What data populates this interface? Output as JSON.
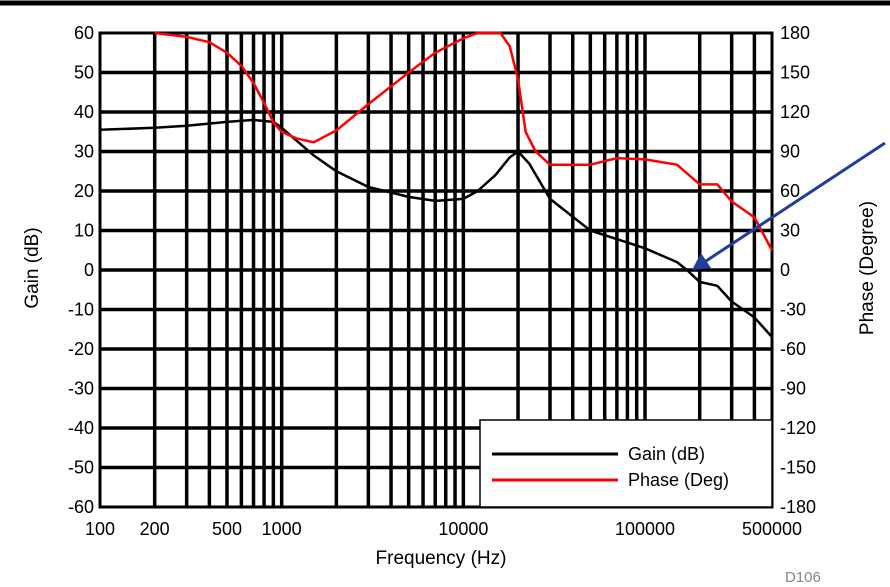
{
  "chart_data": {
    "type": "line",
    "xlabel": "Frequency (Hz)",
    "ylabel": "Gain (dB)",
    "y2label": "Phase (Degree)",
    "xscale": "log",
    "xlim": [
      100,
      500000
    ],
    "ylim": [
      -60,
      60
    ],
    "y2lim": [
      -180,
      180
    ],
    "x_tick_labels": [
      "100",
      "200",
      "500",
      "1000",
      "10000",
      "100000",
      "500000"
    ],
    "x_tick_values": [
      100,
      200,
      500,
      1000,
      10000,
      100000,
      500000
    ],
    "y_ticks": [
      "60",
      "50",
      "40",
      "30",
      "20",
      "10",
      "0",
      "-10",
      "-20",
      "-30",
      "-40",
      "-50",
      "-60"
    ],
    "y2_ticks": [
      "180",
      "150",
      "120",
      "90",
      "60",
      "30",
      "0",
      "-30",
      "-60",
      "-90",
      "-120",
      "-150",
      "-180"
    ],
    "grid": true,
    "legend": "bottom-right",
    "footnote": "D106",
    "series": [
      {
        "name": "Gain (dB)",
        "axis": "left",
        "color": "#000000",
        "x": [
          100,
          200,
          300,
          500,
          700,
          900,
          1000,
          1500,
          2000,
          3000,
          5000,
          7000,
          10000,
          12000,
          15000,
          18000,
          20000,
          23000,
          30000,
          50000,
          100000,
          150000,
          170000,
          200000,
          250000,
          300000,
          400000,
          500000
        ],
        "y": [
          35.5,
          36,
          36.5,
          37.5,
          38,
          37.5,
          36,
          29,
          25,
          21,
          18.5,
          17.5,
          18,
          20,
          24,
          28.5,
          30,
          27,
          18,
          10,
          5.5,
          2,
          0,
          -3,
          -4,
          -8,
          -12,
          -17
        ]
      },
      {
        "name": "Phase (Deg)",
        "axis": "right",
        "color": "#ff0000",
        "x": [
          200,
          300,
          400,
          500,
          600,
          700,
          800,
          900,
          1000,
          1200,
          1500,
          2000,
          3000,
          5000,
          7000,
          10000,
          12000,
          13000,
          16000,
          18000,
          20000,
          22000,
          25000,
          30000,
          50000,
          70000,
          100000,
          150000,
          200000,
          250000,
          300000,
          400000,
          500000
        ],
        "y": [
          180,
          177,
          173,
          165,
          155,
          142,
          127,
          112,
          105,
          100,
          97,
          106,
          126,
          150,
          165,
          176,
          182,
          185,
          185,
          170,
          145,
          105,
          90,
          80,
          80,
          85,
          84,
          80,
          65,
          65,
          52,
          40,
          15
        ]
      }
    ]
  }
}
